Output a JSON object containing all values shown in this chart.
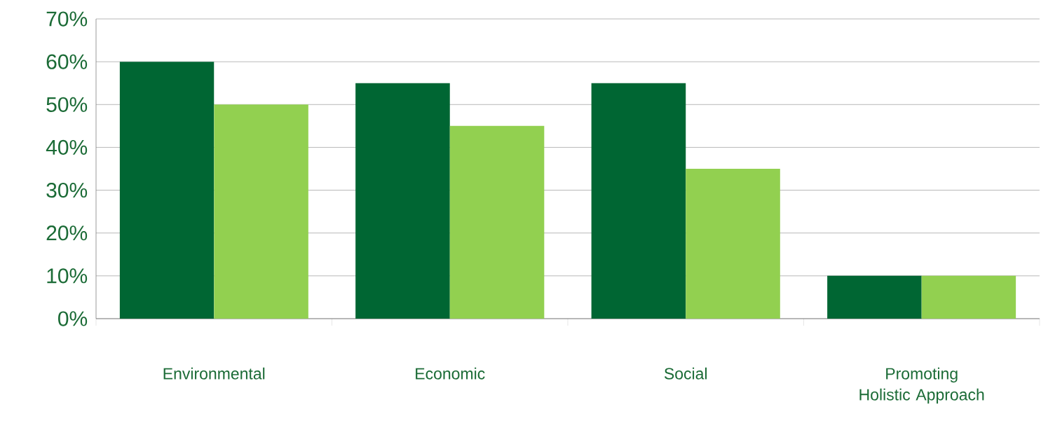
{
  "chart_data": {
    "type": "bar",
    "categories": [
      "Environmental",
      "Economic",
      "Social",
      "Promoting Holistic Approach"
    ],
    "series": [
      {
        "color": "#006633",
        "values": [
          60,
          55,
          55,
          10
        ]
      },
      {
        "color": "#92d050",
        "values": [
          50,
          45,
          35,
          10
        ]
      }
    ],
    "ylim": [
      0,
      70
    ],
    "yticks": [
      {
        "value": 0,
        "label": "0%"
      },
      {
        "value": 10,
        "label": "10%"
      },
      {
        "value": 20,
        "label": "20%"
      },
      {
        "value": 30,
        "label": "30%"
      },
      {
        "value": 40,
        "label": "40%"
      },
      {
        "value": 50,
        "label": "50%"
      },
      {
        "value": 60,
        "label": "60%"
      },
      {
        "value": 70,
        "label": "70%"
      }
    ],
    "grid": "y"
  }
}
